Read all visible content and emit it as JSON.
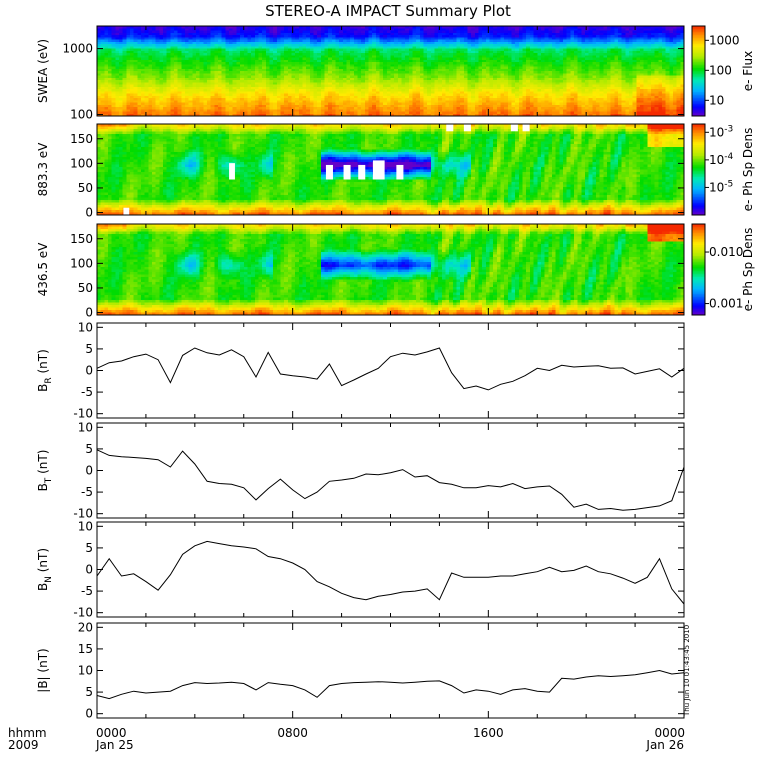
{
  "title": "STEREO-A IMPACT Summary Plot",
  "footer": {
    "row_label_1": "hhmm",
    "row_label_2": "2009",
    "date_start": "Jan 25",
    "date_end": "Jan 26",
    "stamp": "Thu Jun 10 01:43:45 2010"
  },
  "colors": {
    "frame": "#000000",
    "line": "#000000",
    "background": "#ffffff",
    "gap": "#ffffff"
  },
  "chart_data": [
    {
      "type": "heatmap",
      "id": "swea",
      "ylabel": "SWEA (eV)",
      "ylog": true,
      "ylim": [
        95,
        2200
      ],
      "yticks": [
        {
          "v": 1000,
          "label": "1000"
        },
        {
          "v": 100,
          "label": "100"
        }
      ],
      "colorbar": {
        "label": "e- Flux",
        "scale": "log",
        "range": [
          3,
          3000
        ],
        "ticks": [
          {
            "v": 1000,
            "label": "1000"
          },
          {
            "v": 100,
            "label": "100"
          },
          {
            "v": 10,
            "label": "10"
          }
        ]
      },
      "description_rows": "low energies (100 eV) highest flux (red), high energies (>1500 eV) lowest flux (blue/purple)"
    },
    {
      "type": "heatmap",
      "id": "pad883",
      "ylabel": "883.3 eV",
      "ylim": [
        -5,
        180
      ],
      "yticks": [
        {
          "v": 150,
          "label": "150"
        },
        {
          "v": 100,
          "label": "100"
        },
        {
          "v": 50,
          "label": "50"
        },
        {
          "v": 0,
          "label": "0"
        }
      ],
      "colorbar": {
        "label": "e- Ph Sp Dens",
        "scale": "log",
        "range": [
          1e-06,
          0.002
        ],
        "ticks": [
          {
            "v": 0.001,
            "label": "10",
            "exp": "-3"
          },
          {
            "v": 0.0001,
            "label": "10",
            "exp": "-4"
          },
          {
            "v": 1e-05,
            "label": "10",
            "exp": "-5"
          }
        ]
      }
    },
    {
      "type": "heatmap",
      "id": "pad436",
      "ylabel": "436.5 eV",
      "ylim": [
        -5,
        180
      ],
      "yticks": [
        {
          "v": 150,
          "label": "150"
        },
        {
          "v": 100,
          "label": "100"
        },
        {
          "v": 50,
          "label": "50"
        },
        {
          "v": 0,
          "label": "0"
        }
      ],
      "colorbar": {
        "label": "e- Ph Sp Dens",
        "scale": "log",
        "range": [
          0.0006,
          0.035
        ],
        "ticks": [
          {
            "v": 0.01,
            "label": "0.010"
          },
          {
            "v": 0.001,
            "label": "0.001"
          }
        ]
      }
    },
    {
      "type": "line",
      "id": "br",
      "ylabel": "B",
      "ysub": "R",
      "yunit": " (nT)",
      "ylim": [
        -11,
        11
      ],
      "yticks": [
        {
          "v": 10,
          "label": "10"
        },
        {
          "v": 5,
          "label": "5"
        },
        {
          "v": 0,
          "label": "0"
        },
        {
          "v": -5,
          "label": "-5"
        },
        {
          "v": -10,
          "label": "-10"
        }
      ],
      "x_hours": [
        0,
        0.5,
        1,
        1.5,
        2,
        2.5,
        3,
        3.5,
        4,
        4.5,
        5,
        5.5,
        6,
        6.5,
        7,
        7.5,
        8,
        8.5,
        9,
        9.5,
        10,
        10.5,
        11,
        11.5,
        12,
        12.5,
        13,
        13.5,
        14,
        14.5,
        15,
        15.5,
        16,
        16.5,
        17,
        17.5,
        18,
        18.5,
        19,
        19.5,
        20,
        20.5,
        21,
        21.5,
        22,
        22.5,
        23,
        23.5,
        24
      ],
      "values": [
        0.5,
        1.8,
        2.2,
        3.2,
        3.8,
        2.5,
        -2.8,
        3.5,
        5.2,
        4.1,
        3.6,
        4.8,
        3.2,
        -1.5,
        4.2,
        -0.8,
        -1.2,
        -1.5,
        -2.0,
        1.5,
        -3.5,
        -2.2,
        -0.8,
        0.5,
        3.2,
        4.0,
        3.6,
        4.3,
        5.2,
        -0.5,
        -4.2,
        -3.6,
        -4.5,
        -3.2,
        -2.5,
        -1.2,
        0.5,
        0.0,
        1.2,
        0.8,
        1.0,
        1.1,
        0.5,
        0.6,
        -0.8,
        -0.2,
        0.4,
        -1.5,
        0.5
      ]
    },
    {
      "type": "line",
      "id": "bt",
      "ylabel": "B",
      "ysub": "T",
      "yunit": " (nT)",
      "ylim": [
        -11,
        11
      ],
      "yticks": [
        {
          "v": 10,
          "label": "10"
        },
        {
          "v": 5,
          "label": "5"
        },
        {
          "v": 0,
          "label": "0"
        },
        {
          "v": -5,
          "label": "-5"
        },
        {
          "v": -10,
          "label": "-10"
        }
      ],
      "x_hours": [
        0,
        0.5,
        1,
        1.5,
        2,
        2.5,
        3,
        3.5,
        4,
        4.5,
        5,
        5.5,
        6,
        6.5,
        7,
        7.5,
        8,
        8.5,
        9,
        9.5,
        10,
        10.5,
        11,
        11.5,
        12,
        12.5,
        13,
        13.5,
        14,
        14.5,
        15,
        15.5,
        16,
        16.5,
        17,
        17.5,
        18,
        18.5,
        19,
        19.5,
        20,
        20.5,
        21,
        21.5,
        22,
        22.5,
        23,
        23.5,
        24
      ],
      "values": [
        4.8,
        3.5,
        3.2,
        3.0,
        2.8,
        2.5,
        0.8,
        4.5,
        1.5,
        -2.5,
        -3.0,
        -3.2,
        -4.0,
        -6.8,
        -4.2,
        -2.0,
        -4.5,
        -6.5,
        -5.0,
        -2.5,
        -2.2,
        -1.8,
        -0.8,
        -1.0,
        -0.5,
        0.2,
        -1.5,
        -1.2,
        -2.8,
        -3.2,
        -4.0,
        -4.0,
        -3.5,
        -3.8,
        -3.0,
        -4.2,
        -3.8,
        -3.6,
        -5.5,
        -8.5,
        -7.8,
        -9.0,
        -8.8,
        -9.2,
        -9.0,
        -8.6,
        -8.2,
        -7.0,
        0.8
      ]
    },
    {
      "type": "line",
      "id": "bn",
      "ylabel": "B",
      "ysub": "N",
      "yunit": " (nT)",
      "ylim": [
        -11,
        11
      ],
      "yticks": [
        {
          "v": 10,
          "label": "10"
        },
        {
          "v": 5,
          "label": "5"
        },
        {
          "v": 0,
          "label": "0"
        },
        {
          "v": -5,
          "label": "-5"
        },
        {
          "v": -10,
          "label": "-10"
        }
      ],
      "x_hours": [
        0,
        0.5,
        1,
        1.5,
        2,
        2.5,
        3,
        3.5,
        4,
        4.5,
        5,
        5.5,
        6,
        6.5,
        7,
        7.5,
        8,
        8.5,
        9,
        9.5,
        10,
        10.5,
        11,
        11.5,
        12,
        12.5,
        13,
        13.5,
        14,
        14.5,
        15,
        15.5,
        16,
        16.5,
        17,
        17.5,
        18,
        18.5,
        19,
        19.5,
        20,
        20.5,
        21,
        21.5,
        22,
        22.5,
        23,
        23.5,
        24
      ],
      "values": [
        -1.5,
        2.5,
        -1.5,
        -1.0,
        -2.8,
        -4.8,
        -1.2,
        3.5,
        5.5,
        6.5,
        6.0,
        5.5,
        5.2,
        4.8,
        3.0,
        2.5,
        1.5,
        0.0,
        -2.8,
        -4.0,
        -5.5,
        -6.5,
        -7.0,
        -6.2,
        -5.8,
        -5.2,
        -5.0,
        -4.5,
        -7.0,
        -0.8,
        -1.8,
        -1.8,
        -1.8,
        -1.5,
        -1.5,
        -1.0,
        -0.5,
        0.5,
        -0.5,
        -0.2,
        0.8,
        -0.5,
        -1.0,
        -2.0,
        -3.2,
        -1.8,
        2.5,
        -4.5,
        -8.0
      ]
    },
    {
      "type": "line",
      "id": "bmag",
      "ylabel": "|B| (nT)",
      "ylim": [
        -1,
        21
      ],
      "yticks": [
        {
          "v": 20,
          "label": "20"
        },
        {
          "v": 15,
          "label": "15"
        },
        {
          "v": 10,
          "label": "10"
        },
        {
          "v": 5,
          "label": "5"
        },
        {
          "v": 0,
          "label": "0"
        }
      ],
      "x_hours": [
        0,
        0.5,
        1,
        1.5,
        2,
        2.5,
        3,
        3.5,
        4,
        4.5,
        5,
        5.5,
        6,
        6.5,
        7,
        7.5,
        8,
        8.5,
        9,
        9.5,
        10,
        10.5,
        11,
        11.5,
        12,
        12.5,
        13,
        13.5,
        14,
        14.5,
        15,
        15.5,
        16,
        16.5,
        17,
        17.5,
        18,
        18.5,
        19,
        19.5,
        20,
        20.5,
        21,
        21.5,
        22,
        22.5,
        23,
        23.5,
        24
      ],
      "values": [
        4.2,
        3.5,
        4.5,
        5.2,
        4.8,
        5.0,
        5.2,
        6.5,
        7.2,
        7.0,
        7.1,
        7.3,
        7.0,
        5.5,
        7.2,
        6.8,
        6.5,
        5.5,
        3.8,
        6.5,
        7.0,
        7.2,
        7.3,
        7.4,
        7.3,
        7.1,
        7.3,
        7.5,
        7.6,
        6.5,
        4.8,
        5.5,
        5.2,
        4.5,
        5.5,
        5.8,
        5.2,
        5.0,
        8.2,
        8.0,
        8.5,
        8.8,
        8.6,
        8.8,
        9.0,
        9.5,
        10.0,
        9.2,
        9.5
      ]
    }
  ],
  "xaxis": {
    "range_hours": [
      0,
      24
    ],
    "ticks": [
      {
        "v": 0,
        "label": "0000"
      },
      {
        "v": 8,
        "label": "0800"
      },
      {
        "v": 16,
        "label": "1600"
      },
      {
        "v": 24,
        "label": "0000"
      }
    ]
  }
}
